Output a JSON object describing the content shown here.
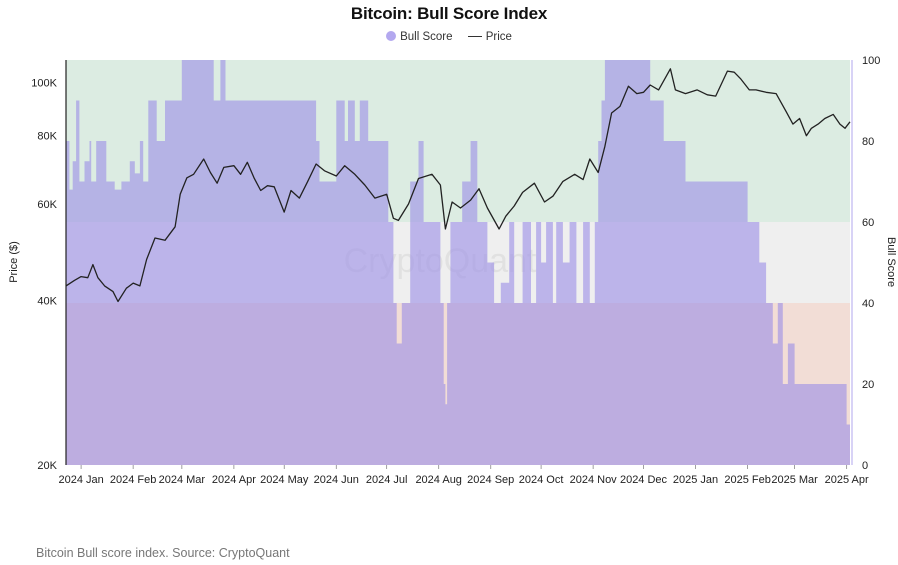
{
  "chart_data": {
    "type": "area",
    "title": "Bitcoin: Bull Score Index",
    "legend": [
      "Bull Score",
      "Price"
    ],
    "legend_position": "top-center",
    "ylabel_left": "Price ($)",
    "ylabel_right": "Bull Score",
    "yscale_left": "log",
    "ylim_left": [
      20000,
      110000
    ],
    "yticks_left": [
      "20K",
      "40K",
      "60K",
      "80K",
      "100K"
    ],
    "ylim_right": [
      0,
      100
    ],
    "yticks_right": [
      "0",
      "20",
      "40",
      "60",
      "80",
      "100"
    ],
    "xticks": [
      "2024 Jan",
      "2024 Feb",
      "2024 Mar",
      "2024 Apr",
      "2024 May",
      "2024 Jun",
      "2024 Jul",
      "2024 Aug",
      "2024 Sep",
      "2024 Oct",
      "2024 Nov",
      "2024 Dec",
      "2025 Jan",
      "2025 Feb",
      "2025 Mar",
      "2025 Apr"
    ],
    "x_range": [
      "2023-12-23",
      "2025-04-03"
    ],
    "zones": [
      {
        "from": 0,
        "to": 40,
        "color": "#f2ddd6"
      },
      {
        "from": 40,
        "to": 60,
        "color": "#efefef"
      },
      {
        "from": 60,
        "to": 100,
        "color": "#dcece2"
      }
    ],
    "watermark": "CryptoQuant",
    "series": [
      {
        "name": "Bull Score",
        "color": "#9c8fe6",
        "x": [
          "2023-12-23",
          "2023-12-25",
          "2023-12-27",
          "2023-12-29",
          "2023-12-31",
          "2024-01-03",
          "2024-01-06",
          "2024-01-07",
          "2024-01-10",
          "2024-01-12",
          "2024-01-16",
          "2024-01-18",
          "2024-01-21",
          "2024-01-25",
          "2024-01-30",
          "2024-02-02",
          "2024-02-05",
          "2024-02-07",
          "2024-02-10",
          "2024-02-13",
          "2024-02-15",
          "2024-02-20",
          "2024-02-26",
          "2024-03-01",
          "2024-03-05",
          "2024-03-14",
          "2024-03-20",
          "2024-03-24",
          "2024-03-27",
          "2024-03-30",
          "2024-04-03",
          "2024-04-08",
          "2024-04-12",
          "2024-04-15",
          "2024-04-20",
          "2024-05-01",
          "2024-05-06",
          "2024-05-14",
          "2024-05-20",
          "2024-05-22",
          "2024-05-26",
          "2024-06-01",
          "2024-06-06",
          "2024-06-08",
          "2024-06-12",
          "2024-06-15",
          "2024-06-20",
          "2024-06-24",
          "2024-07-02",
          "2024-07-05",
          "2024-07-07",
          "2024-07-10",
          "2024-07-15",
          "2024-07-20",
          "2024-07-23",
          "2024-07-28",
          "2024-08-02",
          "2024-08-04",
          "2024-08-05",
          "2024-08-06",
          "2024-08-08",
          "2024-08-11",
          "2024-08-15",
          "2024-08-20",
          "2024-08-24",
          "2024-08-30",
          "2024-09-03",
          "2024-09-07",
          "2024-09-12",
          "2024-09-15",
          "2024-09-20",
          "2024-09-25",
          "2024-09-28",
          "2024-10-01",
          "2024-10-04",
          "2024-10-08",
          "2024-10-10",
          "2024-10-14",
          "2024-10-18",
          "2024-10-22",
          "2024-10-26",
          "2024-10-30",
          "2024-11-02",
          "2024-11-04",
          "2024-11-06",
          "2024-11-08",
          "2024-11-11",
          "2024-12-01",
          "2024-12-05",
          "2024-12-08",
          "2024-12-10",
          "2024-12-13",
          "2024-12-18",
          "2024-12-21",
          "2024-12-26",
          "2025-01-01",
          "2025-01-10",
          "2025-01-15",
          "2025-01-20",
          "2025-01-27",
          "2025-02-01",
          "2025-02-03",
          "2025-02-05",
          "2025-02-08",
          "2025-02-12",
          "2025-02-16",
          "2025-02-19",
          "2025-02-22",
          "2025-02-25",
          "2025-03-01",
          "2025-03-05",
          "2025-03-10",
          "2025-03-15",
          "2025-03-20",
          "2025-03-25",
          "2025-03-28",
          "2025-03-31",
          "2025-04-01",
          "2025-04-03"
        ],
        "y": [
          80,
          68,
          75,
          90,
          70,
          75,
          80,
          70,
          80,
          80,
          70,
          70,
          68,
          70,
          75,
          72,
          80,
          70,
          90,
          90,
          80,
          90,
          90,
          100,
          100,
          100,
          90,
          100,
          90,
          90,
          90,
          90,
          90,
          90,
          90,
          90,
          90,
          90,
          80,
          70,
          70,
          90,
          80,
          90,
          80,
          90,
          80,
          80,
          60,
          40,
          30,
          40,
          70,
          80,
          60,
          60,
          40,
          20,
          15,
          40,
          60,
          60,
          70,
          80,
          60,
          50,
          40,
          45,
          60,
          40,
          60,
          40,
          60,
          50,
          60,
          40,
          60,
          50,
          60,
          40,
          60,
          40,
          60,
          80,
          90,
          100,
          100,
          100,
          90,
          90,
          90,
          80,
          80,
          80,
          70,
          70,
          70,
          70,
          70,
          70,
          60,
          60,
          60,
          50,
          40,
          30,
          40,
          20,
          30,
          20,
          20,
          20,
          20,
          20,
          20,
          20,
          20,
          10,
          20
        ]
      },
      {
        "name": "Price",
        "color": "#222222",
        "x": [
          "2023-12-23",
          "2023-12-28",
          "2024-01-01",
          "2024-01-05",
          "2024-01-08",
          "2024-01-11",
          "2024-01-15",
          "2024-01-20",
          "2024-01-23",
          "2024-01-28",
          "2024-02-01",
          "2024-02-05",
          "2024-02-09",
          "2024-02-14",
          "2024-02-20",
          "2024-02-26",
          "2024-02-29",
          "2024-03-04",
          "2024-03-08",
          "2024-03-14",
          "2024-03-18",
          "2024-03-22",
          "2024-03-26",
          "2024-04-01",
          "2024-04-05",
          "2024-04-09",
          "2024-04-13",
          "2024-04-17",
          "2024-04-21",
          "2024-04-25",
          "2024-05-01",
          "2024-05-05",
          "2024-05-10",
          "2024-05-15",
          "2024-05-20",
          "2024-05-25",
          "2024-06-01",
          "2024-06-06",
          "2024-06-12",
          "2024-06-18",
          "2024-06-24",
          "2024-07-01",
          "2024-07-05",
          "2024-07-08",
          "2024-07-14",
          "2024-07-20",
          "2024-07-28",
          "2024-08-02",
          "2024-08-05",
          "2024-08-09",
          "2024-08-14",
          "2024-08-20",
          "2024-08-25",
          "2024-08-30",
          "2024-09-06",
          "2024-09-10",
          "2024-09-15",
          "2024-09-20",
          "2024-09-27",
          "2024-10-03",
          "2024-10-08",
          "2024-10-14",
          "2024-10-21",
          "2024-10-26",
          "2024-10-30",
          "2024-11-04",
          "2024-11-08",
          "2024-11-12",
          "2024-11-17",
          "2024-11-22",
          "2024-11-27",
          "2024-12-01",
          "2024-12-05",
          "2024-12-10",
          "2024-12-17",
          "2024-12-20",
          "2024-12-26",
          "2025-01-02",
          "2025-01-08",
          "2025-01-13",
          "2025-01-20",
          "2025-01-24",
          "2025-01-28",
          "2025-02-02",
          "2025-02-06",
          "2025-02-12",
          "2025-02-18",
          "2025-02-24",
          "2025-02-28",
          "2025-03-04",
          "2025-03-08",
          "2025-03-11",
          "2025-03-15",
          "2025-03-19",
          "2025-03-24",
          "2025-03-28",
          "2025-03-31",
          "2025-04-03"
        ],
        "y": [
          42500,
          43500,
          44200,
          44000,
          46500,
          44000,
          42500,
          41500,
          39800,
          42100,
          43000,
          42500,
          47500,
          52000,
          51500,
          54500,
          62500,
          67000,
          68000,
          72500,
          68500,
          65500,
          70000,
          70500,
          68000,
          71500,
          67000,
          63500,
          64800,
          64500,
          58000,
          63500,
          61500,
          66000,
          71000,
          69000,
          67500,
          70500,
          68000,
          65000,
          61500,
          62500,
          56500,
          56000,
          60000,
          66800,
          68000,
          65000,
          54000,
          60500,
          59000,
          61000,
          64000,
          59000,
          54000,
          57000,
          59500,
          63000,
          65500,
          60500,
          62000,
          66000,
          68000,
          66500,
          72500,
          68500,
          76500,
          88000,
          90500,
          98500,
          95500,
          96000,
          99000,
          97000,
          106000,
          97000,
          95500,
          97000,
          95000,
          94500,
          105000,
          104500,
          101500,
          97000,
          97000,
          96000,
          95500,
          88500,
          84000,
          86000,
          80000,
          82500,
          84000,
          86000,
          87500,
          84000,
          82500,
          84800
        ]
      }
    ]
  },
  "caption": "Bitcoin Bull score index. Source: CryptoQuant"
}
